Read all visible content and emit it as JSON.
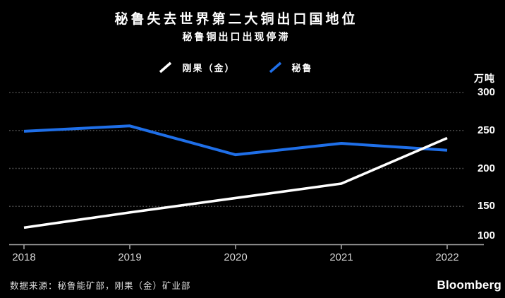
{
  "chart_data": {
    "type": "line",
    "title": "秘鲁失去世界第二大铜出口国地位",
    "subtitle": "秘鲁铜出口出现停滞",
    "x": [
      "2018",
      "2019",
      "2020",
      "2021",
      "2022"
    ],
    "series": [
      {
        "name": "刚果（金）",
        "color": "#ffffff",
        "values": [
          122,
          142,
          161,
          180,
          240
        ]
      },
      {
        "name": "秘鲁",
        "color": "#1f6fe8",
        "values": [
          249,
          256,
          218,
          233,
          224
        ]
      }
    ],
    "ylabel": "万吨",
    "yticks": [
      300,
      250,
      200,
      150,
      100
    ],
    "ylim": [
      100,
      300
    ],
    "grid": "horizontal-dotted",
    "legend_position": "top-center"
  },
  "footer": {
    "source": "数据来源：秘鲁能矿部，刚果（金）矿业部",
    "brand": "Bloomberg"
  },
  "colors": {
    "background": "#000000",
    "text": "#ffffff",
    "axis": "#a8a8a8",
    "grid_dots": "#4d4d4d",
    "x_tick_label": "#d6d6d6",
    "series_peru": "#1f6fe8",
    "series_congo": "#ffffff"
  }
}
